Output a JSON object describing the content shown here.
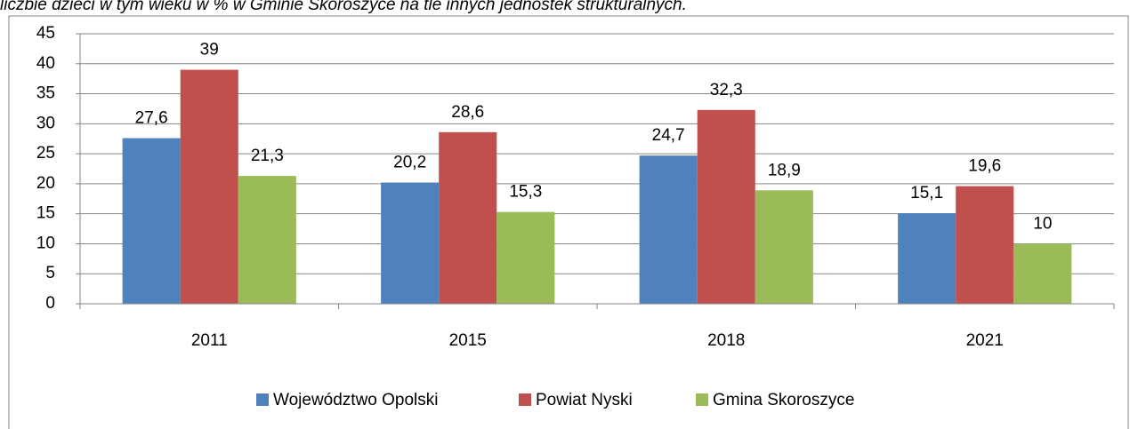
{
  "chart_data": {
    "type": "bar",
    "title": "liczbie dzieci w tym wieku w % w Gminie Skoroszyce na tle innych jednostek strukturalnych.",
    "categories": [
      "2011",
      "2015",
      "2018",
      "2021"
    ],
    "series": [
      {
        "name": "Województwo Opolski",
        "color": "#4f81bd",
        "values": [
          27.6,
          20.2,
          24.7,
          15.1
        ],
        "value_labels": [
          "27,6",
          "20,2",
          "24,7",
          "15,1"
        ]
      },
      {
        "name": "Powiat Nyski",
        "color": "#c0504d",
        "values": [
          39,
          28.6,
          32.3,
          19.6
        ],
        "value_labels": [
          "39",
          "28,6",
          "32,3",
          "19,6"
        ]
      },
      {
        "name": "Gmina Skoroszyce",
        "color": "#9bbb59",
        "values": [
          21.3,
          15.3,
          18.9,
          10
        ],
        "value_labels": [
          "21,3",
          "15,3",
          "18,9",
          "10"
        ]
      }
    ],
    "ylim": [
      0,
      45
    ],
    "yticks": [
      0,
      5,
      10,
      15,
      20,
      25,
      30,
      35,
      40,
      45
    ],
    "grid": true,
    "legend": "bottom"
  }
}
